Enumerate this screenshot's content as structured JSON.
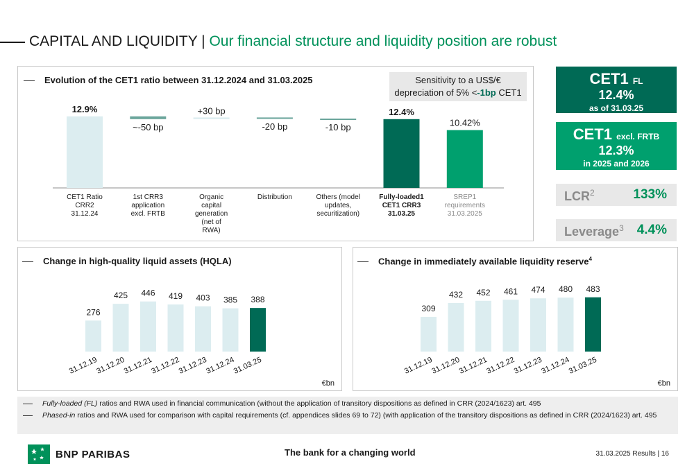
{
  "header": {
    "main": "CAPITAL AND LIQUIDITY | ",
    "sub": "Our financial structure and liquidity position are robust"
  },
  "cet1_panel": {
    "title": "Evolution of the CET1 ratio between 31.12.2024 and 31.03.2025",
    "sensitivity_l1": "Sensitivity to a US$/€",
    "sensitivity_l2_pre": "depreciation of 5% <",
    "sensitivity_bold": "-1bp",
    "sensitivity_post": " CET1"
  },
  "kpis": {
    "cet1_fl": {
      "title": "CET1",
      "suffix": "FL",
      "value": "12.4%",
      "date": "as of 31.03.25"
    },
    "cet1_frtb": {
      "title": "CET1",
      "suffix": "excl. FRTB",
      "value": "12.3%",
      "date": "in 2025 and 2026"
    },
    "lcr": {
      "label": "LCR",
      "sup": "2",
      "value": "133%"
    },
    "leverage": {
      "label": "Leverage",
      "sup": "3",
      "value": "4.4%"
    }
  },
  "hqla_panel": {
    "title": "Change in high-quality liquid assets (HQLA)",
    "unit": "€bn"
  },
  "liq_panel": {
    "title": "Change in immediately available liquidity reserve",
    "title_sup": "4",
    "unit": "€bn"
  },
  "notes": {
    "n1_italic": "Fully-loaded (FL)",
    "n1_rest": " ratios and RWA used in financial communication (without the application of transitory dispositions as defined in CRR (2024/1623) art. 495",
    "n2_italic": "Phased-in",
    "n2_rest": " ratios and RWA used for comparison with capital requirements (cf. appendices slides 69 to 72) (with application of the transitory dispositions as defined in CRR (2024/1623) art. 495"
  },
  "footer": {
    "brand": "BNP PARIBAS",
    "tagline": "The bank for a changing world",
    "page": "31.03.2025 Results | 16"
  },
  "colors": {
    "dark_green": "#006a55",
    "light_teal": "#dcedf0",
    "mid_teal": "#6aa59b",
    "srep_green": "#00a06e",
    "brand_green": "#00915a"
  },
  "chart_data": [
    {
      "type": "bar",
      "subtype": "waterfall",
      "categories": [
        "CET1 Ratio CRR2 31.12.24",
        "1st CRR3 application excl. FRTB",
        "Organic capital generation (net of RWA)",
        "Distribution",
        "Others (model updates, securitization)",
        "Fully-loaded1 CET1 CRR3 31.03.25",
        "SREP1 requirements 31.03.2025"
      ],
      "category_lines": [
        [
          "CET1 Ratio",
          "CRR2",
          "31.12.24"
        ],
        [
          "1st CRR3",
          "application",
          "excl. FRTB"
        ],
        [
          "Organic",
          "capital",
          "generation",
          "(net of",
          "RWA)"
        ],
        [
          "Distribution"
        ],
        [
          "Others (model",
          "updates,",
          "securitization)"
        ],
        [
          "Fully-loaded1",
          "CET1 CRR3",
          "31.03.25"
        ],
        [
          "SREP1",
          "requirements",
          "31.03.2025"
        ]
      ],
      "values_pct": [
        12.9,
        -0.5,
        0.3,
        -0.2,
        -0.1,
        12.4,
        10.42
      ],
      "kinds": [
        "total",
        "delta",
        "delta",
        "delta",
        "delta",
        "total",
        "total"
      ],
      "labels": [
        "12.9%",
        "~-50 bp",
        "+30 bp",
        "-20 bp",
        "-10 bp",
        "12.4%",
        "10.42%"
      ]
    },
    {
      "type": "bar",
      "title": "Change in high-quality liquid assets (HQLA)",
      "categories": [
        "31.12.19",
        "31.12.20",
        "31.12.21",
        "31.12.22",
        "31.12.23",
        "31.12.24",
        "31.03.25"
      ],
      "values": [
        276,
        425,
        446,
        419,
        403,
        385,
        388
      ],
      "unit": "€bn"
    },
    {
      "type": "bar",
      "title": "Change in immediately available liquidity reserve",
      "categories": [
        "31.12.19",
        "31.12.20",
        "31.12.21",
        "31.12.22",
        "31.12.23",
        "31.12.24",
        "31.03.25"
      ],
      "values": [
        309,
        432,
        452,
        461,
        474,
        480,
        483
      ],
      "unit": "€bn"
    }
  ]
}
